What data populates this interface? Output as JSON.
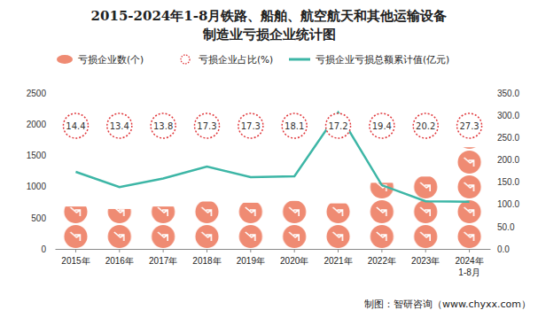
{
  "chart_data": {
    "type": "bar",
    "title": "2015-2024年1-8月铁路、船舶、航空航天和其他运输设备\n制造业亏损企业统计图",
    "categories": [
      "2015年",
      "2016年",
      "2017年",
      "2018年",
      "2019年",
      "2020年",
      "2021年",
      "2022年",
      "2023年",
      "2024年\n1-8月"
    ],
    "series": [
      {
        "name": "亏损企业数(个)",
        "type": "bar",
        "color": "#ef8b73",
        "marker": "circle",
        "values": [
          680,
          640,
          680,
          760,
          740,
          770,
          730,
          1060,
          1160,
          1630
        ]
      },
      {
        "name": "亏损企业占比(%)",
        "type": "scatter",
        "color": "#e03a3e",
        "marker": "circle",
        "data_labels": true,
        "values": [
          14.4,
          13.4,
          13.8,
          17.3,
          17.3,
          18.1,
          17.2,
          19.4,
          20.2,
          27.3
        ]
      },
      {
        "name": "亏损企业亏损总额累计值(亿元)",
        "type": "line",
        "color": "#3db6a6",
        "axis": "y2",
        "values": [
          173,
          139,
          158,
          185,
          161,
          163,
          306,
          143,
          107,
          106
        ]
      }
    ],
    "ylim": [
      0,
      2500
    ],
    "yticks": [
      0,
      500,
      1000,
      1500,
      2000,
      2500
    ],
    "y2lim": [
      0,
      350
    ],
    "y2ticks": [
      {
        "value": 0,
        "label": "0.0"
      },
      {
        "value": 50,
        "label": "50.0"
      },
      {
        "value": 100,
        "label": "100.0"
      },
      {
        "value": 150,
        "label": "150.0"
      },
      {
        "value": 200,
        "label": "200.0"
      },
      {
        "value": 250,
        "label": "250.0"
      },
      {
        "value": 300,
        "label": "300.0"
      },
      {
        "value": 350,
        "label": "350.0"
      }
    ],
    "grid": false,
    "legend": "top",
    "annotations": [
      "制图：智研咨询（www.chyxx.com）"
    ]
  }
}
